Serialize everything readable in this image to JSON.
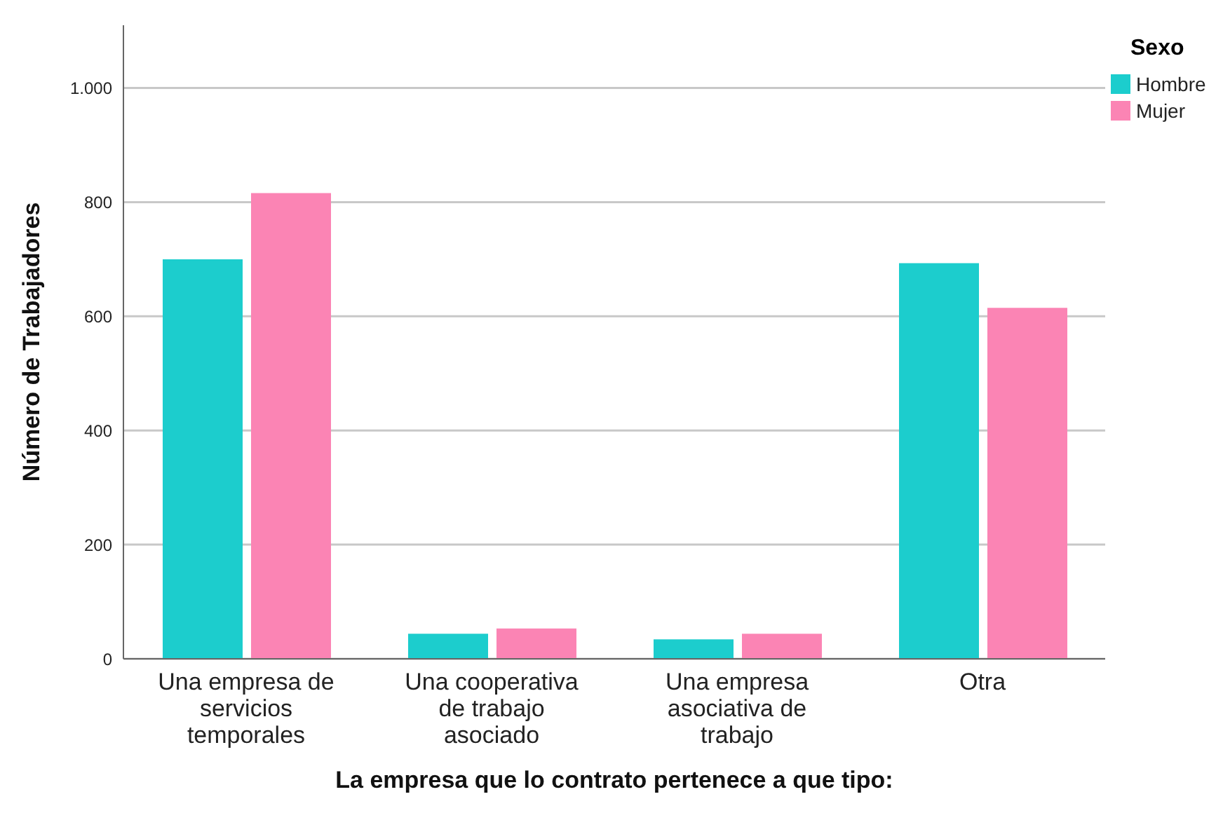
{
  "chart_data": {
    "type": "bar",
    "xlabel": "La empresa que lo contrato pertenece a que tipo:",
    "ylabel": "Número de Trabajadores",
    "legend_title": "Sexo",
    "categories": [
      "Una empresa de servicios temporales",
      "Una cooperativa de trabajo asociado",
      "Una empresa asociativa de trabajo",
      "Otra"
    ],
    "series": [
      {
        "name": "Hombre",
        "color": "#1ccdcd",
        "values": [
          700,
          44,
          34,
          693
        ]
      },
      {
        "name": "Mujer",
        "color": "#fb84b4",
        "values": [
          816,
          53,
          44,
          615
        ]
      }
    ],
    "ylim": [
      0,
      1110
    ],
    "yticks": [
      0,
      200,
      400,
      600,
      800,
      {
        "value": 1000,
        "label": "1.000"
      }
    ],
    "grid": "y",
    "legend": "top right"
  }
}
